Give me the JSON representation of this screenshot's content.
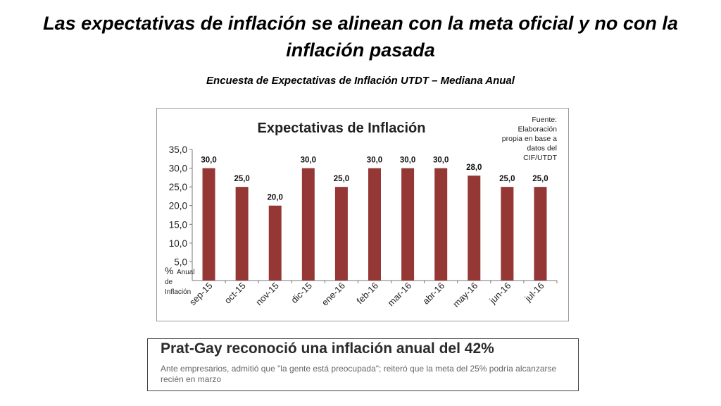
{
  "slide": {
    "title": "Las expectativas de inflación se alinean con la meta oficial y no con la inflación pasada",
    "subtitle": "Encuesta de Expectativas de Inflación UTDT – Mediana Anual"
  },
  "chart_data": {
    "type": "bar",
    "title": "Expectativas de Inflación",
    "source_note": [
      "Fuente:",
      "Elaboración",
      "propia en base a",
      "datos del",
      "CIF/UTDT"
    ],
    "ylabel": [
      "%",
      "Anual",
      "de",
      "Inflación"
    ],
    "categories": [
      "sep-15",
      "oct-15",
      "nov-15",
      "dic-15",
      "ene-16",
      "feb-16",
      "mar-16",
      "abr-16",
      "may-16",
      "jun-16",
      "jul-16"
    ],
    "values": [
      30.0,
      25.0,
      20.0,
      30.0,
      25.0,
      30.0,
      30.0,
      30.0,
      28.0,
      25.0,
      25.0
    ],
    "data_labels": [
      "30,0",
      "25,0",
      "20,0",
      "30,0",
      "25,0",
      "30,0",
      "30,0",
      "30,0",
      "28,0",
      "25,0",
      "25,0"
    ],
    "yticks": [
      "35,0",
      "30,0",
      "25,0",
      "20,0",
      "15,0",
      "10,0",
      "5,0"
    ],
    "ylim": [
      0,
      35
    ],
    "grid": false,
    "legend": "none",
    "bar_color": "#953735"
  },
  "news": {
    "headline": "Prat-Gay reconoció una inflación anual del 42%",
    "body": "Ante empresarios, admitió que \"la gente está preocupada\"; reiteró que la meta del 25% podría alcanzarse recién en marzo"
  }
}
